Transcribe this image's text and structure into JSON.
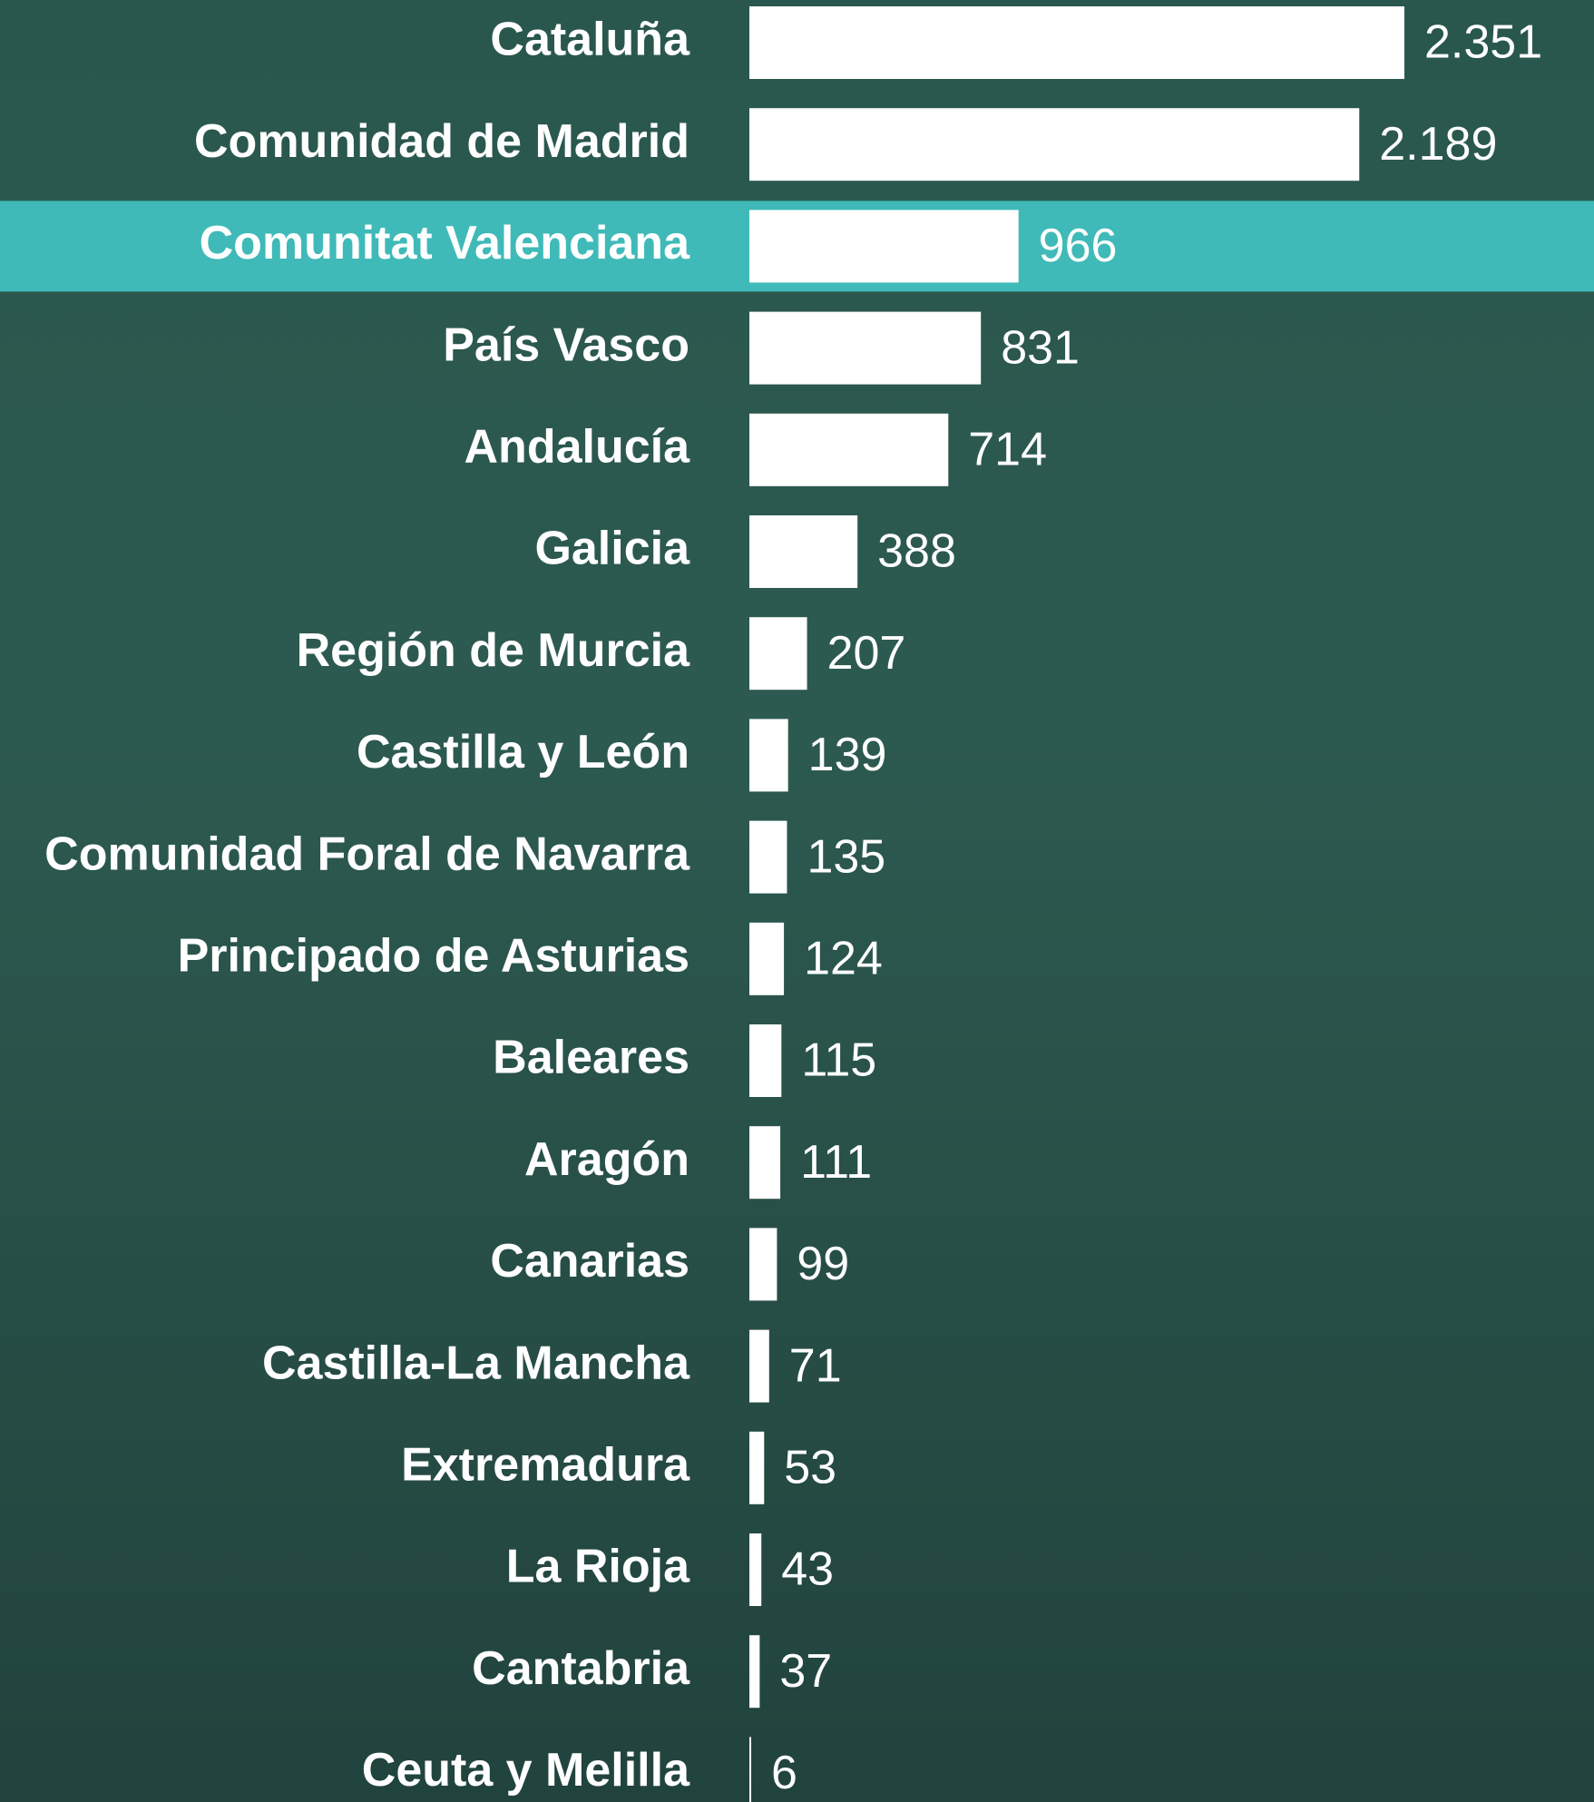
{
  "chart_data": {
    "type": "bar",
    "orientation": "horizontal",
    "categories": [
      "Cataluña",
      "Comunidad de Madrid",
      "Comunitat Valenciana",
      "País Vasco",
      "Andalucía",
      "Galicia",
      "Región de Murcia",
      "Castilla y León",
      "Comunidad Foral de Navarra",
      "Principado de Asturias",
      "Baleares",
      "Aragón",
      "Canarias",
      "Castilla-La Mancha",
      "Extremadura",
      "La Rioja",
      "Cantabria",
      "Ceuta y Melilla"
    ],
    "values": [
      2351,
      2189,
      966,
      831,
      714,
      388,
      207,
      139,
      135,
      124,
      115,
      111,
      99,
      71,
      53,
      43,
      37,
      6
    ],
    "value_labels": [
      "2.351",
      "2.189",
      "966",
      "831",
      "714",
      "388",
      "207",
      "139",
      "135",
      "124",
      "115",
      "111",
      "99",
      "71",
      "53",
      "43",
      "37",
      "6"
    ],
    "color": "#ffffff",
    "highlight": {
      "index": 2,
      "color": "#3fbab8"
    }
  }
}
